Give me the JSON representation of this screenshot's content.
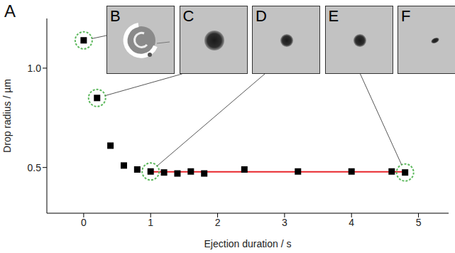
{
  "chart_data": {
    "type": "scatter",
    "panel_label": "A",
    "x_label": "Ejection duration / s",
    "y_label": "Drop radius / µm",
    "x": [
      0,
      0.2,
      0.4,
      0.6,
      0.8,
      1.0,
      1.2,
      1.4,
      1.6,
      1.8,
      2.4,
      3.2,
      4.0,
      4.6,
      4.8
    ],
    "values": [
      1.14,
      0.85,
      0.61,
      0.51,
      0.49,
      0.48,
      0.475,
      0.47,
      0.48,
      0.47,
      0.49,
      0.48,
      0.48,
      0.48,
      0.475
    ],
    "color": "#000000",
    "marker": "square",
    "fit": {
      "x": [
        1.0,
        4.8
      ],
      "values": [
        0.478,
        0.478
      ],
      "color": "#e8262c"
    },
    "annotations": [
      {
        "text": "B",
        "x": 0,
        "y": 1.14
      },
      {
        "text": "C",
        "x": 0.2,
        "y": 0.85
      },
      {
        "text": "D",
        "x": 1.0,
        "y": 0.48
      },
      {
        "text": "E",
        "x": 4.8,
        "y": 0.475
      },
      {
        "text": "F"
      }
    ],
    "xlim": [
      -0.55,
      5.45
    ],
    "ylim": [
      0.27,
      1.25
    ],
    "xticks": [
      0,
      1,
      2,
      3,
      4,
      5
    ],
    "yticks": [
      0.5,
      {
        "value": 1,
        "label": "1.0"
      }
    ],
    "grid": false
  }
}
